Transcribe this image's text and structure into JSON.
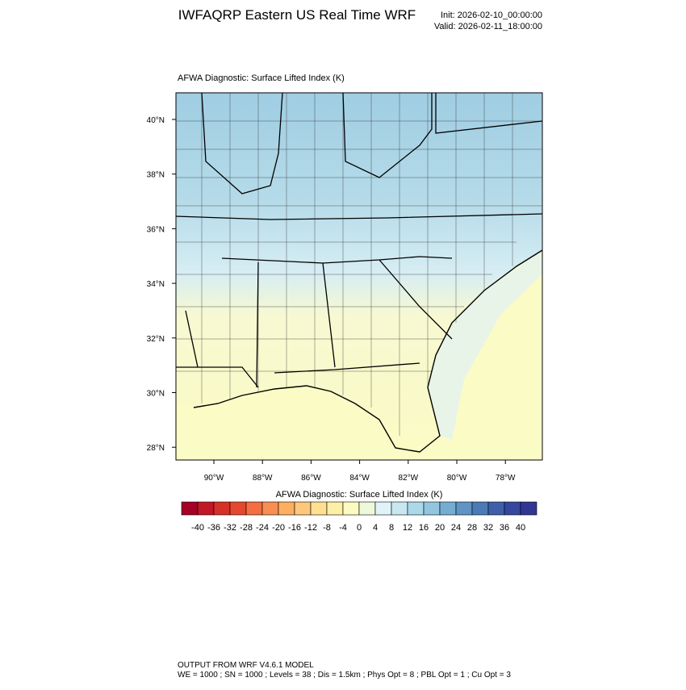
{
  "header": {
    "title": "IWFAQRP Eastern US Real Time WRF",
    "init": "Init: 2026-02-10_00:00:00",
    "valid": "Valid: 2026-02-11_18:00:00"
  },
  "map": {
    "title": "AFWA Diagnostic: Surface Lifted Index   (K)",
    "lat_labels": [
      "40°N",
      "38°N",
      "36°N",
      "34°N",
      "32°N",
      "30°N",
      "28°N"
    ],
    "lon_labels": [
      "90°W",
      "88°W",
      "86°W",
      "84°W",
      "82°W",
      "80°W",
      "78°W"
    ]
  },
  "colorbar": {
    "title": "AFWA Diagnostic: Surface Lifted Index  (K)",
    "colors": [
      "#a50026",
      "#c11727",
      "#d73027",
      "#e4482f",
      "#f46d43",
      "#f98e52",
      "#fdae61",
      "#fec77b",
      "#fee090",
      "#fdefa6",
      "#fbfbc2",
      "#eef8db",
      "#e0f3f8",
      "#c8e7f1",
      "#abd9e9",
      "#92c5de",
      "#74add1",
      "#5f94c4",
      "#4a7bb7",
      "#3f5fa8",
      "#35479e",
      "#313695"
    ],
    "ticks": [
      -40,
      -36,
      -32,
      -28,
      -24,
      -20,
      -16,
      -12,
      -8,
      -4,
      0,
      4,
      8,
      12,
      16,
      20,
      24,
      28,
      32,
      36,
      40
    ]
  },
  "footer": {
    "line1": "OUTPUT FROM WRF V4.6.1 MODEL",
    "line2": "WE = 1000 ; SN = 1000 ; Levels = 38 ; Dis = 1.5km ; Phys Opt = 8 ; PBL Opt = 1 ; Cu Opt = 3"
  }
}
